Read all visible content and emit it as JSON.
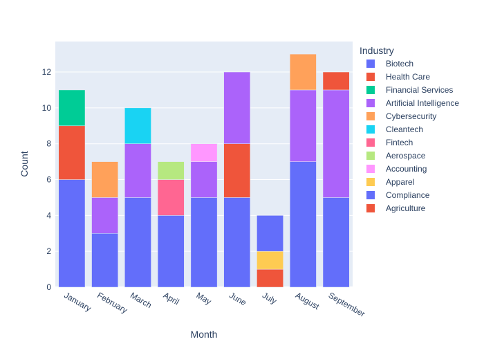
{
  "chart_data": {
    "type": "bar",
    "stacked": true,
    "xlabel": "Month",
    "ylabel": "Count",
    "ylim": [
      0,
      13.7
    ],
    "yticks": [
      0,
      2,
      4,
      6,
      8,
      10,
      12
    ],
    "grid": true,
    "legend_title": "Industry",
    "legend_position": "right",
    "categories": [
      "January",
      "February",
      "March",
      "April",
      "May",
      "June",
      "July",
      "August",
      "September"
    ],
    "series": [
      {
        "name": "Biotech",
        "color": "#636efa",
        "values": [
          6,
          3,
          5,
          4,
          5,
          5,
          0,
          7,
          5
        ]
      },
      {
        "name": "Health Care",
        "color": "#EF553B",
        "values": [
          3,
          0,
          0,
          0,
          0,
          3,
          0,
          0,
          0
        ]
      },
      {
        "name": "Financial Services",
        "color": "#00cc96",
        "values": [
          2,
          0,
          0,
          0,
          0,
          0,
          0,
          0,
          0
        ]
      },
      {
        "name": "Artificial Intelligence",
        "color": "#ab63fa",
        "values": [
          0,
          2,
          3,
          0,
          2,
          4,
          0,
          4,
          6
        ]
      },
      {
        "name": "Cybersecurity",
        "color": "#FFA15A",
        "values": [
          0,
          2,
          0,
          0,
          0,
          0,
          0,
          2,
          0
        ]
      },
      {
        "name": "Cleantech",
        "color": "#19d3f3",
        "values": [
          0,
          0,
          2,
          0,
          0,
          0,
          0,
          0,
          0
        ]
      },
      {
        "name": "Fintech",
        "color": "#FF6692",
        "values": [
          0,
          0,
          0,
          2,
          0,
          0,
          0,
          0,
          0
        ]
      },
      {
        "name": "Aerospace",
        "color": "#B6E880",
        "values": [
          0,
          0,
          0,
          1,
          0,
          0,
          0,
          0,
          0
        ]
      },
      {
        "name": "Accounting",
        "color": "#FF97FF",
        "values": [
          0,
          0,
          0,
          0,
          1,
          0,
          0,
          0,
          0
        ]
      },
      {
        "name": "Apparel",
        "color": "#FECB52",
        "values": [
          0,
          0,
          0,
          0,
          0,
          0,
          1,
          0,
          0
        ]
      },
      {
        "name": "Compliance",
        "color": "#636efa",
        "values": [
          0,
          0,
          0,
          0,
          0,
          0,
          2,
          0,
          0
        ]
      },
      {
        "name": "Agriculture",
        "color": "#EF553B",
        "values": [
          0,
          0,
          0,
          0,
          0,
          0,
          1,
          0,
          1
        ]
      }
    ],
    "stack_order": [
      [
        "Biotech",
        "Health Care",
        "Financial Services"
      ],
      [
        "Biotech",
        "Artificial Intelligence",
        "Cybersecurity"
      ],
      [
        "Biotech",
        "Artificial Intelligence",
        "Cleantech"
      ],
      [
        "Biotech",
        "Fintech",
        "Aerospace"
      ],
      [
        "Biotech",
        "Artificial Intelligence",
        "Accounting"
      ],
      [
        "Biotech",
        "Health Care",
        "Artificial Intelligence"
      ],
      [
        "Agriculture",
        "Apparel",
        "Compliance"
      ],
      [
        "Biotech",
        "Artificial Intelligence",
        "Cybersecurity"
      ],
      [
        "Biotech",
        "Artificial Intelligence",
        "Agriculture"
      ]
    ],
    "colors": {
      "plot_bg": "#e5ecf6",
      "grid": "#ffffff",
      "text": "#2a3f5f"
    }
  }
}
